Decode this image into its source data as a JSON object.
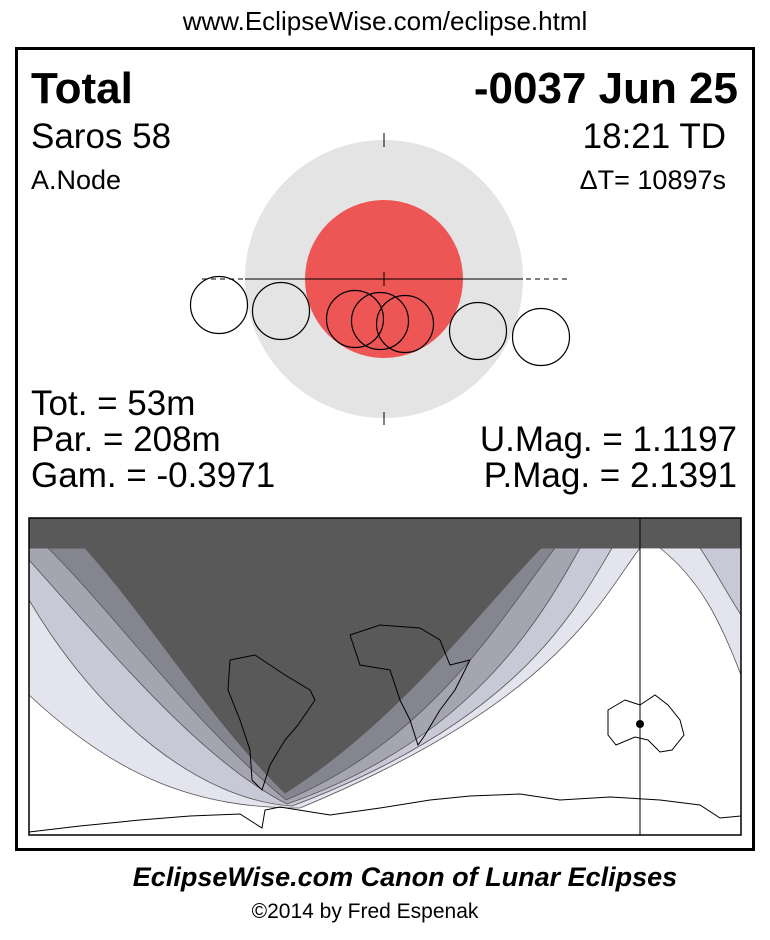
{
  "header": {
    "url": "www.EclipseWise.com/eclipse.html"
  },
  "eclipse": {
    "type": "Total",
    "date": "-0037 Jun 25",
    "saros": "Saros  58",
    "time": "18:21 TD",
    "node": "A.Node",
    "delta_t": "ΔT=  10897s",
    "totality": "Tot. =  53m",
    "partial": "Par. = 208m",
    "gamma": "Gam. = -0.3971",
    "umbral_mag": "U.Mag. = 1.1197",
    "penumbral_mag": "P.Mag. = 2.1391"
  },
  "colors": {
    "penumbra": "#e4e4e4",
    "umbra": "#ee5555",
    "map_night": "#595959",
    "map_band_1": "#858590",
    "map_band_2": "#a5a5b2",
    "map_band_3": "#c8c8d6",
    "map_band_4": "#e4e4ee"
  },
  "footer": {
    "title": "EclipseWise.com Canon of Lunar Eclipses",
    "copyright": "©2014 by Fred Espenak"
  }
}
